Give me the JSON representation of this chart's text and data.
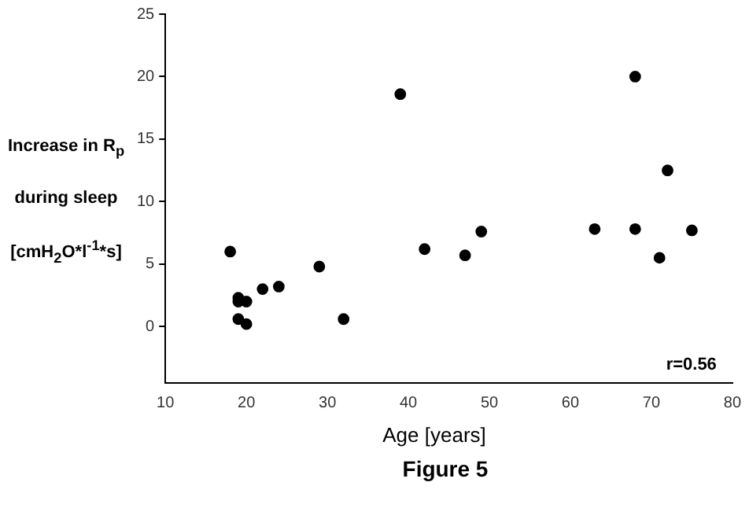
{
  "chart_data": {
    "type": "scatter",
    "title": "Figure 5",
    "xlabel": "Age [years]",
    "ylabel": "Increase in R$_{p}$\nduring sleep\n[cmH$_{2}$O*l$^{-1}$*s]",
    "x": [
      18,
      19,
      19,
      20,
      19,
      20,
      22,
      24,
      29,
      32,
      39,
      42,
      47,
      49,
      63,
      68,
      68,
      71,
      72,
      75
    ],
    "series": [
      {
        "color": "#000000",
        "values": [
          6.0,
          2.3,
          2.0,
          2.0,
          0.6,
          0.2,
          3.0,
          3.2,
          4.8,
          0.6,
          18.6,
          6.2,
          5.7,
          7.6,
          7.8,
          20.0,
          7.8,
          5.5,
          12.5,
          7.7
        ]
      }
    ],
    "xlim": [
      10,
      80
    ],
    "xticks": [
      10,
      20,
      30,
      40,
      50,
      60,
      70,
      80
    ],
    "ylim": [
      -4.5,
      25
    ],
    "yticks": [
      0,
      5,
      10,
      15,
      20,
      25
    ],
    "grid": false,
    "legend": false,
    "marker": "circle",
    "annotations": [
      "r=0.56"
    ]
  }
}
